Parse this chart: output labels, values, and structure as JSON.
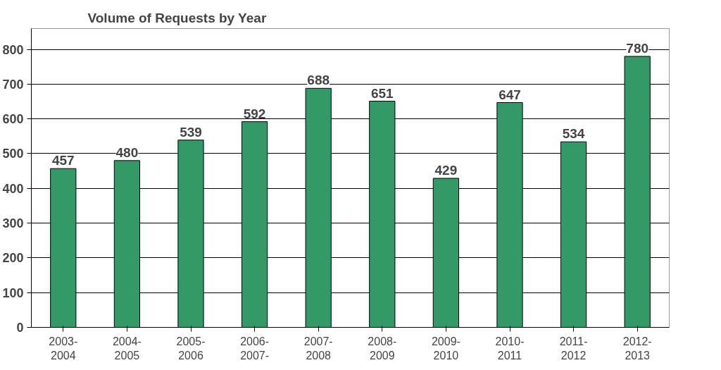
{
  "chart_data": {
    "type": "bar",
    "title": "Volume of Requests by Year",
    "categories": [
      "2003-\n2004",
      "2004-\n2005",
      "2005-\n2006",
      "2006-\n2007-",
      "2007-\n2008",
      "2008-\n2009",
      "2009-\n2010",
      "2010-\n2011",
      "2011-\n2012",
      "2012-\n2013"
    ],
    "values": [
      457,
      480,
      539,
      592,
      688,
      651,
      429,
      647,
      534,
      780
    ],
    "color": "#339966",
    "ylim": [
      0,
      860
    ],
    "yticks": [
      0,
      100,
      200,
      300,
      400,
      500,
      600,
      700,
      800
    ],
    "grid": "y",
    "data_labels": true
  }
}
